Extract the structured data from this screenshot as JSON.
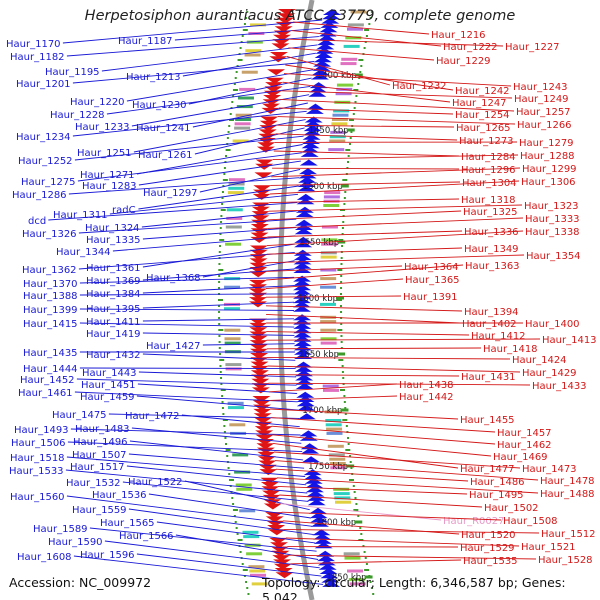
{
  "title": "Herpetosiphon aurantiacus ATCC 23779, complete genome",
  "accession": "Accession: NC_009972",
  "topology": "Topology: circular; Length: 6,346,587 bp; Genes: 5,042",
  "colors": {
    "left_label": "#1a1ad6",
    "right_label": "#d41818",
    "highlight_label": "#e99ac8",
    "backbone": "#9a9a9a",
    "tick": "#3b9a2a"
  },
  "left_labels": [
    {
      "id": "l1170",
      "text": "Haur_1170"
    },
    {
      "id": "l1187",
      "text": "Haur_1187"
    },
    {
      "id": "l1182",
      "text": "Haur_1182"
    },
    {
      "id": "l1195",
      "text": "Haur_1195"
    },
    {
      "id": "l1213",
      "text": "Haur_1213"
    },
    {
      "id": "l1201",
      "text": "Haur_1201"
    },
    {
      "id": "l1220",
      "text": "Haur_1220"
    },
    {
      "id": "l1230",
      "text": "Haur_1230"
    },
    {
      "id": "l1228",
      "text": "Haur_1228"
    },
    {
      "id": "l1233",
      "text": "Haur_1233"
    },
    {
      "id": "l1241",
      "text": "Haur_1241"
    },
    {
      "id": "l1234",
      "text": "Haur_1234"
    },
    {
      "id": "l1251",
      "text": "Haur_1251"
    },
    {
      "id": "l1261",
      "text": "Haur_1261"
    },
    {
      "id": "l1252",
      "text": "Haur_1252"
    },
    {
      "id": "l1271",
      "text": "Haur_1271"
    },
    {
      "id": "l1275",
      "text": "Haur_1275"
    },
    {
      "id": "l1283",
      "text": "Haur_1283"
    },
    {
      "id": "l1297",
      "text": "Haur_1297"
    },
    {
      "id": "l1286",
      "text": "Haur_1286"
    },
    {
      "id": "lradC",
      "text": "radC"
    },
    {
      "id": "l1311",
      "text": "Haur_1311"
    },
    {
      "id": "ldcd",
      "text": "dcd"
    },
    {
      "id": "l1324",
      "text": "Haur_1324"
    },
    {
      "id": "l1326",
      "text": "Haur_1326"
    },
    {
      "id": "l1335",
      "text": "Haur_1335"
    },
    {
      "id": "l1344",
      "text": "Haur_1344"
    },
    {
      "id": "l1361",
      "text": "Haur_1361"
    },
    {
      "id": "l1362",
      "text": "Haur_1362"
    },
    {
      "id": "l1368",
      "text": "Haur_1368"
    },
    {
      "id": "l1369",
      "text": "Haur_1369"
    },
    {
      "id": "l1370",
      "text": "Haur_1370"
    },
    {
      "id": "l1384",
      "text": "Haur_1384"
    },
    {
      "id": "l1388",
      "text": "Haur_1388"
    },
    {
      "id": "l1395",
      "text": "Haur_1395"
    },
    {
      "id": "l1399",
      "text": "Haur_1399"
    },
    {
      "id": "l1411",
      "text": "Haur_1411"
    },
    {
      "id": "l1415",
      "text": "Haur_1415"
    },
    {
      "id": "l1419",
      "text": "Haur_1419"
    },
    {
      "id": "l1427",
      "text": "Haur_1427"
    },
    {
      "id": "l1435",
      "text": "Haur_1435"
    },
    {
      "id": "l1432",
      "text": "Haur_1432"
    },
    {
      "id": "l1444",
      "text": "Haur_1444"
    },
    {
      "id": "l1443",
      "text": "Haur_1443"
    },
    {
      "id": "l1452",
      "text": "Haur_1452"
    },
    {
      "id": "l1451",
      "text": "Haur_1451"
    },
    {
      "id": "l1461",
      "text": "Haur_1461"
    },
    {
      "id": "l1459",
      "text": "Haur_1459"
    },
    {
      "id": "l1475",
      "text": "Haur_1475"
    },
    {
      "id": "l1472",
      "text": "Haur_1472"
    },
    {
      "id": "l1493",
      "text": "Haur_1493"
    },
    {
      "id": "l1483",
      "text": "Haur_1483"
    },
    {
      "id": "l1506",
      "text": "Haur_1506"
    },
    {
      "id": "l1496",
      "text": "Haur_1496"
    },
    {
      "id": "l1507",
      "text": "Haur_1507"
    },
    {
      "id": "l1518",
      "text": "Haur_1518"
    },
    {
      "id": "l1517",
      "text": "Haur_1517"
    },
    {
      "id": "l1533",
      "text": "Haur_1533"
    },
    {
      "id": "l1532",
      "text": "Haur_1532"
    },
    {
      "id": "l1522",
      "text": "Haur_1522"
    },
    {
      "id": "l1536",
      "text": "Haur_1536"
    },
    {
      "id": "l1560",
      "text": "Haur_1560"
    },
    {
      "id": "l1559",
      "text": "Haur_1559"
    },
    {
      "id": "l1565",
      "text": "Haur_1565"
    },
    {
      "id": "l1589",
      "text": "Haur_1589"
    },
    {
      "id": "l1566",
      "text": "Haur_1566"
    },
    {
      "id": "l1590",
      "text": "Haur_1590"
    },
    {
      "id": "l1596",
      "text": "Haur_1596"
    },
    {
      "id": "l1608",
      "text": "Haur_1608"
    }
  ],
  "right_labels": [
    {
      "id": "r1216",
      "text": "Haur_1216"
    },
    {
      "id": "r1222",
      "text": "Haur_1222"
    },
    {
      "id": "r1227",
      "text": "Haur_1227"
    },
    {
      "id": "r1229",
      "text": "Haur_1229"
    },
    {
      "id": "r1232",
      "text": "Haur_1232"
    },
    {
      "id": "r1242",
      "text": "Haur_1242"
    },
    {
      "id": "r1243",
      "text": "Haur_1243"
    },
    {
      "id": "r1247",
      "text": "Haur_1247"
    },
    {
      "id": "r1249",
      "text": "Haur_1249"
    },
    {
      "id": "r1257",
      "text": "Haur_1257"
    },
    {
      "id": "r1254",
      "text": "Haur_1254"
    },
    {
      "id": "r1266",
      "text": "Haur_1266"
    },
    {
      "id": "r1265",
      "text": "Haur_1265"
    },
    {
      "id": "r1273",
      "text": "Haur_1273"
    },
    {
      "id": "r1279",
      "text": "Haur_1279"
    },
    {
      "id": "r1284",
      "text": "Haur_1284"
    },
    {
      "id": "r1288",
      "text": "Haur_1288"
    },
    {
      "id": "r1296",
      "text": "Haur_1296"
    },
    {
      "id": "r1299",
      "text": "Haur_1299"
    },
    {
      "id": "r1304",
      "text": "Haur_1304"
    },
    {
      "id": "r1306",
      "text": "Haur_1306"
    },
    {
      "id": "r1318",
      "text": "Haur_1318"
    },
    {
      "id": "r1323",
      "text": "Haur_1323"
    },
    {
      "id": "r1325",
      "text": "Haur_1325"
    },
    {
      "id": "r1333",
      "text": "Haur_1333"
    },
    {
      "id": "r1336",
      "text": "Haur_1336"
    },
    {
      "id": "r1338",
      "text": "Haur_1338"
    },
    {
      "id": "r1349",
      "text": "Haur_1349"
    },
    {
      "id": "r1354",
      "text": "Haur_1354"
    },
    {
      "id": "r1364",
      "text": "Haur_1364"
    },
    {
      "id": "r1363",
      "text": "Haur_1363"
    },
    {
      "id": "r1365",
      "text": "Haur_1365"
    },
    {
      "id": "r1391",
      "text": "Haur_1391"
    },
    {
      "id": "r1394",
      "text": "Haur_1394"
    },
    {
      "id": "r1402",
      "text": "Haur_1402"
    },
    {
      "id": "r1400",
      "text": "Haur_1400"
    },
    {
      "id": "r1412",
      "text": "Haur_1412"
    },
    {
      "id": "r1413",
      "text": "Haur_1413"
    },
    {
      "id": "r1418",
      "text": "Haur_1418"
    },
    {
      "id": "r1424",
      "text": "Haur_1424"
    },
    {
      "id": "r1429",
      "text": "Haur_1429"
    },
    {
      "id": "r1431",
      "text": "Haur_1431"
    },
    {
      "id": "r1433",
      "text": "Haur_1433"
    },
    {
      "id": "r1438",
      "text": "Haur_1438"
    },
    {
      "id": "r1442",
      "text": "Haur_1442"
    },
    {
      "id": "r1455",
      "text": "Haur_1455"
    },
    {
      "id": "r1457",
      "text": "Haur_1457"
    },
    {
      "id": "r1462",
      "text": "Haur_1462"
    },
    {
      "id": "r1469",
      "text": "Haur_1469"
    },
    {
      "id": "r1477",
      "text": "Haur_1477"
    },
    {
      "id": "r1473",
      "text": "Haur_1473"
    },
    {
      "id": "r1478",
      "text": "Haur_1478"
    },
    {
      "id": "r1486",
      "text": "Haur_1486"
    },
    {
      "id": "r1488",
      "text": "Haur_1488"
    },
    {
      "id": "r1495",
      "text": "Haur_1495"
    },
    {
      "id": "r1502",
      "text": "Haur_1502"
    },
    {
      "id": "rR0027",
      "text": "Haur_R0027"
    },
    {
      "id": "r1508",
      "text": "Haur_1508"
    },
    {
      "id": "r1520",
      "text": "Haur_1520"
    },
    {
      "id": "r1512",
      "text": "Haur_1512"
    },
    {
      "id": "r1521",
      "text": "Haur_1521"
    },
    {
      "id": "r1529",
      "text": "Haur_1529"
    },
    {
      "id": "r1528",
      "text": "Haur_1528"
    },
    {
      "id": "r1535",
      "text": "Haur_1535"
    }
  ],
  "kbp_ticks": [
    {
      "id": "k1400",
      "text": "1400 kbp"
    },
    {
      "id": "k1450",
      "text": "1450 kbp"
    },
    {
      "id": "k1500",
      "text": "1500 kbp"
    },
    {
      "id": "k1550",
      "text": "1550 kbp"
    },
    {
      "id": "k1600",
      "text": "1600 kbp"
    },
    {
      "id": "k1650",
      "text": "1650 kbp"
    },
    {
      "id": "k1700",
      "text": "1700 kbp"
    },
    {
      "id": "k1750",
      "text": "1750 kbp"
    },
    {
      "id": "k1800",
      "text": "1800 kbp"
    },
    {
      "id": "k1850",
      "text": "1850 kbp"
    }
  ]
}
